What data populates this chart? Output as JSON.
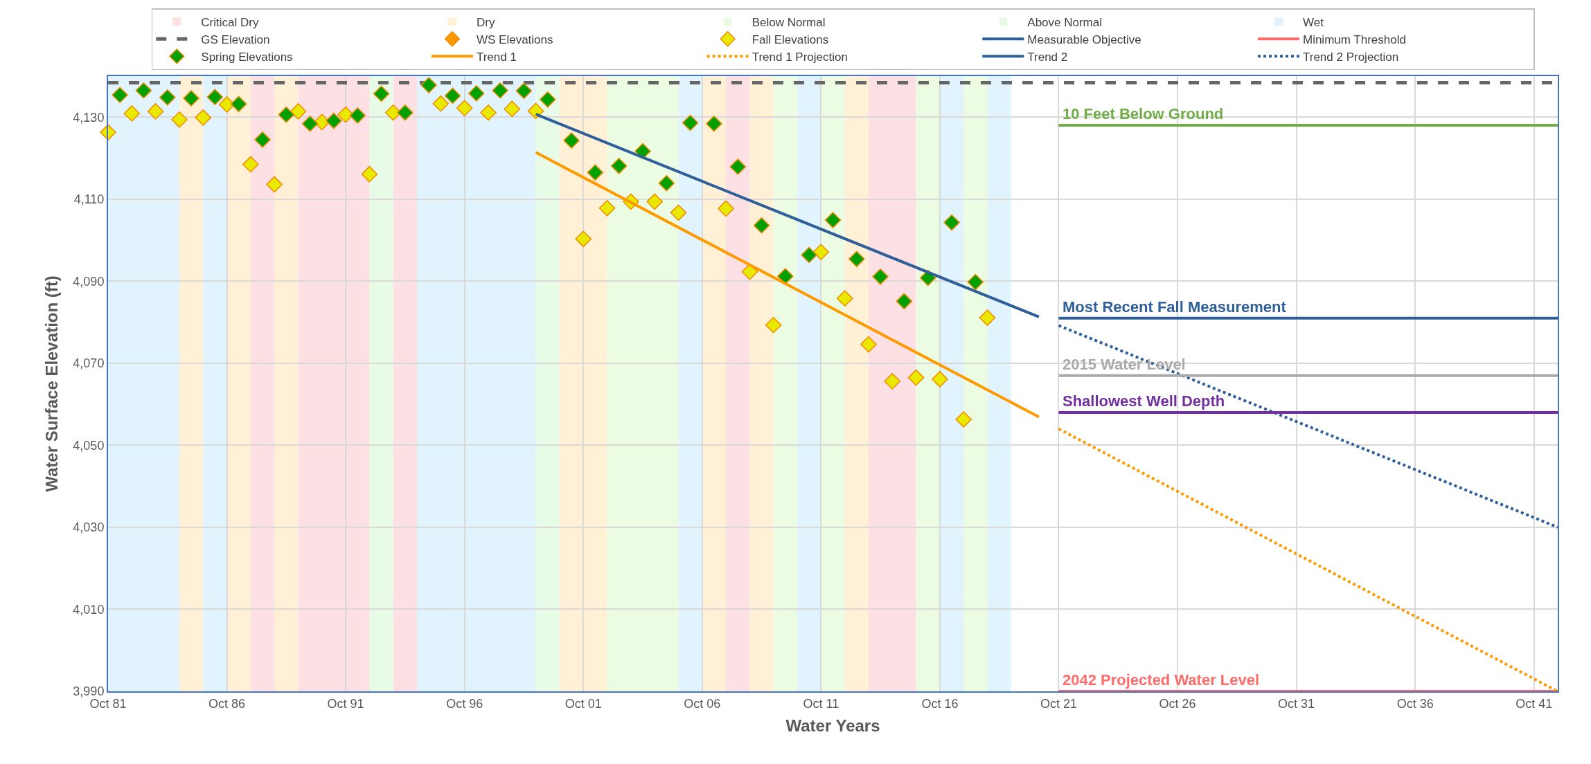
{
  "chart_data": {
    "type": "scatter",
    "xlabel": "Water Years",
    "ylabel": "Water Surface Elevation (ft)",
    "xlim": [
      "1981-10",
      "2042-10"
    ],
    "xticks": [
      {
        "value": "1981-10",
        "label": "Oct 81"
      },
      {
        "value": "1986-10",
        "label": "Oct 86"
      },
      {
        "value": "1991-10",
        "label": "Oct 91"
      },
      {
        "value": "1996-10",
        "label": "Oct 96"
      },
      {
        "value": "2001-10",
        "label": "Oct 01"
      },
      {
        "value": "2006-10",
        "label": "Oct 06"
      },
      {
        "value": "2011-10",
        "label": "Oct 11"
      },
      {
        "value": "2016-10",
        "label": "Oct 16"
      },
      {
        "value": "2021-10",
        "label": "Oct 21"
      },
      {
        "value": "2026-10",
        "label": "Oct 26"
      },
      {
        "value": "2031-10",
        "label": "Oct 31"
      },
      {
        "value": "2036-10",
        "label": "Oct 36"
      },
      {
        "value": "2041-10",
        "label": "Oct 41"
      }
    ],
    "ylim": [
      3990,
      4140
    ],
    "yticks": [
      {
        "value": 3990,
        "label": "3,990"
      },
      {
        "value": 4010,
        "label": "4,010"
      },
      {
        "value": 4030,
        "label": "4,030"
      },
      {
        "value": 4050,
        "label": "4,050"
      },
      {
        "value": 4070,
        "label": "4,070"
      },
      {
        "value": 4090,
        "label": "4,090"
      },
      {
        "value": 4110,
        "label": "4,110"
      },
      {
        "value": 4130,
        "label": "4,130"
      }
    ],
    "grid": true,
    "legend": "top",
    "bands": [
      {
        "axis": "x",
        "from": "1987-10",
        "to": "1988-10",
        "label": "Critical Dry",
        "color": "#fde0e3"
      },
      {
        "axis": "x",
        "from": "1984-10",
        "to": "1985-10",
        "label": "Dry",
        "color": "#fff0d6"
      },
      {
        "axis": "x",
        "from": "2002-10",
        "to": "2005-10",
        "label": "Below Normal",
        "color": "#ebfce3"
      },
      {
        "axis": "x",
        "from": "1992-10",
        "to": "1993-10",
        "label": "Above Normal",
        "color": "#e8fbe6"
      },
      {
        "axis": "x",
        "from": "1981-10",
        "to": "1984-10",
        "label": "Wet",
        "color": "#e1f3fc"
      },
      {
        "axis": "x",
        "from": "1985-10",
        "to": "1986-10",
        "color": "#e1f3fc"
      },
      {
        "axis": "x",
        "from": "1986-10",
        "to": "1987-10",
        "color": "#fff0d6"
      },
      {
        "axis": "x",
        "from": "1988-10",
        "to": "1989-10",
        "color": "#fff0d6"
      },
      {
        "axis": "x",
        "from": "1989-10",
        "to": "1992-10",
        "color": "#fde0e3"
      },
      {
        "axis": "x",
        "from": "1993-10",
        "to": "1994-10",
        "color": "#fde0e3"
      },
      {
        "axis": "x",
        "from": "1994-10",
        "to": "1999-10",
        "color": "#e1f3fc"
      },
      {
        "axis": "x",
        "from": "1999-10",
        "to": "2000-10",
        "color": "#e8fbe6"
      },
      {
        "axis": "x",
        "from": "2000-10",
        "to": "2002-10",
        "color": "#fff0d6"
      },
      {
        "axis": "x",
        "from": "2005-10",
        "to": "2006-10",
        "color": "#e1f3fc"
      },
      {
        "axis": "x",
        "from": "2006-10",
        "to": "2007-10",
        "color": "#fff0d6"
      },
      {
        "axis": "x",
        "from": "2007-10",
        "to": "2008-10",
        "color": "#fde0e3"
      },
      {
        "axis": "x",
        "from": "2008-10",
        "to": "2009-10",
        "color": "#fff0d6"
      },
      {
        "axis": "x",
        "from": "2009-10",
        "to": "2010-10",
        "color": "#ebfce3"
      },
      {
        "axis": "x",
        "from": "2010-10",
        "to": "2011-10",
        "color": "#e1f3fc"
      },
      {
        "axis": "x",
        "from": "2011-10",
        "to": "2012-10",
        "color": "#ebfce3"
      },
      {
        "axis": "x",
        "from": "2012-10",
        "to": "2013-10",
        "color": "#fff0d6"
      },
      {
        "axis": "x",
        "from": "2013-10",
        "to": "2015-10",
        "color": "#fde0e3"
      },
      {
        "axis": "x",
        "from": "2015-10",
        "to": "2016-10",
        "color": "#ebfce3"
      },
      {
        "axis": "x",
        "from": "2016-10",
        "to": "2017-10",
        "color": "#e1f3fc"
      },
      {
        "axis": "x",
        "from": "2017-10",
        "to": "2018-10",
        "color": "#ebfce3"
      },
      {
        "axis": "x",
        "from": "2018-10",
        "to": "2019-10",
        "color": "#e1f3fc"
      }
    ],
    "series": [
      {
        "name": "GS Elevation",
        "type": "line",
        "line_style": "dashed",
        "color": "#666666",
        "x": [
          "1981-10",
          "2042-10"
        ],
        "values": [
          4138.4,
          4138.4
        ]
      },
      {
        "name": "WS Elevations",
        "marker": "diamond",
        "color": "#ff9900"
      },
      {
        "name": "Fall Elevations",
        "marker": "diamond",
        "color": "#e8e800",
        "x": [
          "1981-10",
          "1982-10",
          "1983-10",
          "1984-10",
          "1985-10",
          "1986-10",
          "1987-10",
          "1988-10",
          "1989-10",
          "1990-10",
          "1991-10",
          "1992-10",
          "1993-10",
          "1995-10",
          "1996-10",
          "1997-10",
          "1998-10",
          "1999-10",
          "2001-10",
          "2002-10",
          "2003-10",
          "2004-10",
          "2005-10",
          "2007-10",
          "2008-10",
          "2009-10",
          "2011-10",
          "2012-10",
          "2013-10",
          "2014-10",
          "2015-10",
          "2016-10",
          "2017-10",
          "2018-10"
        ],
        "values": [
          4126.3,
          4130.9,
          4131.4,
          4129.4,
          4129.9,
          4133.1,
          4118.5,
          4113.6,
          4131.4,
          4128.8,
          4130.6,
          4116.1,
          4131.1,
          4133.3,
          4132.2,
          4131.1,
          4132.0,
          4131.5,
          4100.3,
          4107.8,
          4109.4,
          4109.4,
          4106.7,
          4107.7,
          4092.3,
          4079.3,
          4097.1,
          4085.8,
          4074.6,
          4065.6,
          4066.5,
          4066.1,
          4056.3,
          4081.1
        ]
      },
      {
        "name": "Measurable Objective",
        "type": "line",
        "color": "#2f5f98",
        "x": [
          "2021-10",
          "2042-10"
        ],
        "values": [
          4081,
          4081
        ]
      },
      {
        "name": "Minimum Threshold",
        "type": "line",
        "color": "#ff6b6b",
        "x": [
          "2021-10",
          "2042-10"
        ],
        "values": [
          3990,
          3990
        ]
      },
      {
        "name": "Spring Elevations",
        "marker": "diamond",
        "color": "#00a000",
        "x": [
          "1982-04",
          "1983-04",
          "1984-04",
          "1985-04",
          "1986-04",
          "1987-04",
          "1988-04",
          "1989-04",
          "1990-04",
          "1991-04",
          "1992-04",
          "1993-04",
          "1994-04",
          "1995-04",
          "1996-04",
          "1997-04",
          "1998-04",
          "1999-04",
          "2000-04",
          "2001-04",
          "2002-04",
          "2003-04",
          "2004-04",
          "2005-04",
          "2006-04",
          "2007-04",
          "2008-04",
          "2009-04",
          "2010-04",
          "2011-04",
          "2012-04",
          "2013-04",
          "2014-04",
          "2015-04",
          "2016-04",
          "2017-04",
          "2018-04"
        ],
        "values": [
          4135.4,
          4136.5,
          4134.8,
          4134.6,
          4134.9,
          4133.2,
          4124.5,
          4130.6,
          4128.4,
          4129.1,
          4130.4,
          4135.7,
          4131.1,
          4137.8,
          4135.2,
          4135.8,
          4136.5,
          4136.4,
          4134.3,
          4124.3,
          4116.5,
          4118.1,
          4121.7,
          4113.9,
          4128.6,
          4128.4,
          4117.9,
          4103.6,
          4091.2,
          4096.4,
          4104.9,
          4095.4,
          4091.1,
          4085.1,
          4090.8,
          4104.3,
          4089.8
        ]
      },
      {
        "name": "Trend 1",
        "type": "line",
        "color": "#ff9900",
        "x": [
          "1999-10",
          "2020-12"
        ],
        "values": [
          4121.4,
          4056.9
        ]
      },
      {
        "name": "Trend 1 Projection",
        "type": "line",
        "line_style": "dotted",
        "color": "#ff9900",
        "x": [
          "2021-10",
          "2042-10"
        ],
        "values": [
          4054,
          3990
        ]
      },
      {
        "name": "Trend 2",
        "type": "line",
        "color": "#2f5f98",
        "x": [
          "1999-10",
          "2020-12"
        ],
        "values": [
          4130.7,
          4081.3
        ]
      },
      {
        "name": "Trend 2 Projection",
        "type": "line",
        "line_style": "dotted",
        "color": "#2f5f98",
        "x": [
          "2021-10",
          "2042-10"
        ],
        "values": [
          4079.2,
          4030
        ]
      },
      {
        "type": "line",
        "color": "#70ad47",
        "x": [
          "2021-10",
          "2042-10"
        ],
        "values": [
          4128,
          4128
        ]
      },
      {
        "type": "line",
        "color": "#aaaaaa",
        "x": [
          "2021-10",
          "2042-10"
        ],
        "values": [
          4067,
          4067
        ]
      },
      {
        "type": "line",
        "color": "#7030a0",
        "x": [
          "2021-10",
          "2042-10"
        ],
        "values": [
          4058,
          4058
        ]
      }
    ],
    "annotations": [
      {
        "text": "10 Feet Below Ground",
        "x": "2021-10",
        "y": 4128
      },
      {
        "text": "Most Recent Fall Measurement",
        "x": "2021-10",
        "y": 4081
      },
      {
        "text": "2015 Water Level",
        "x": "2021-10",
        "y": 4067
      },
      {
        "text": "Shallowest Well Depth",
        "x": "2021-10",
        "y": 4058
      },
      {
        "text": "2042 Projected Water Level",
        "x": "2021-10",
        "y": 3990
      }
    ]
  }
}
